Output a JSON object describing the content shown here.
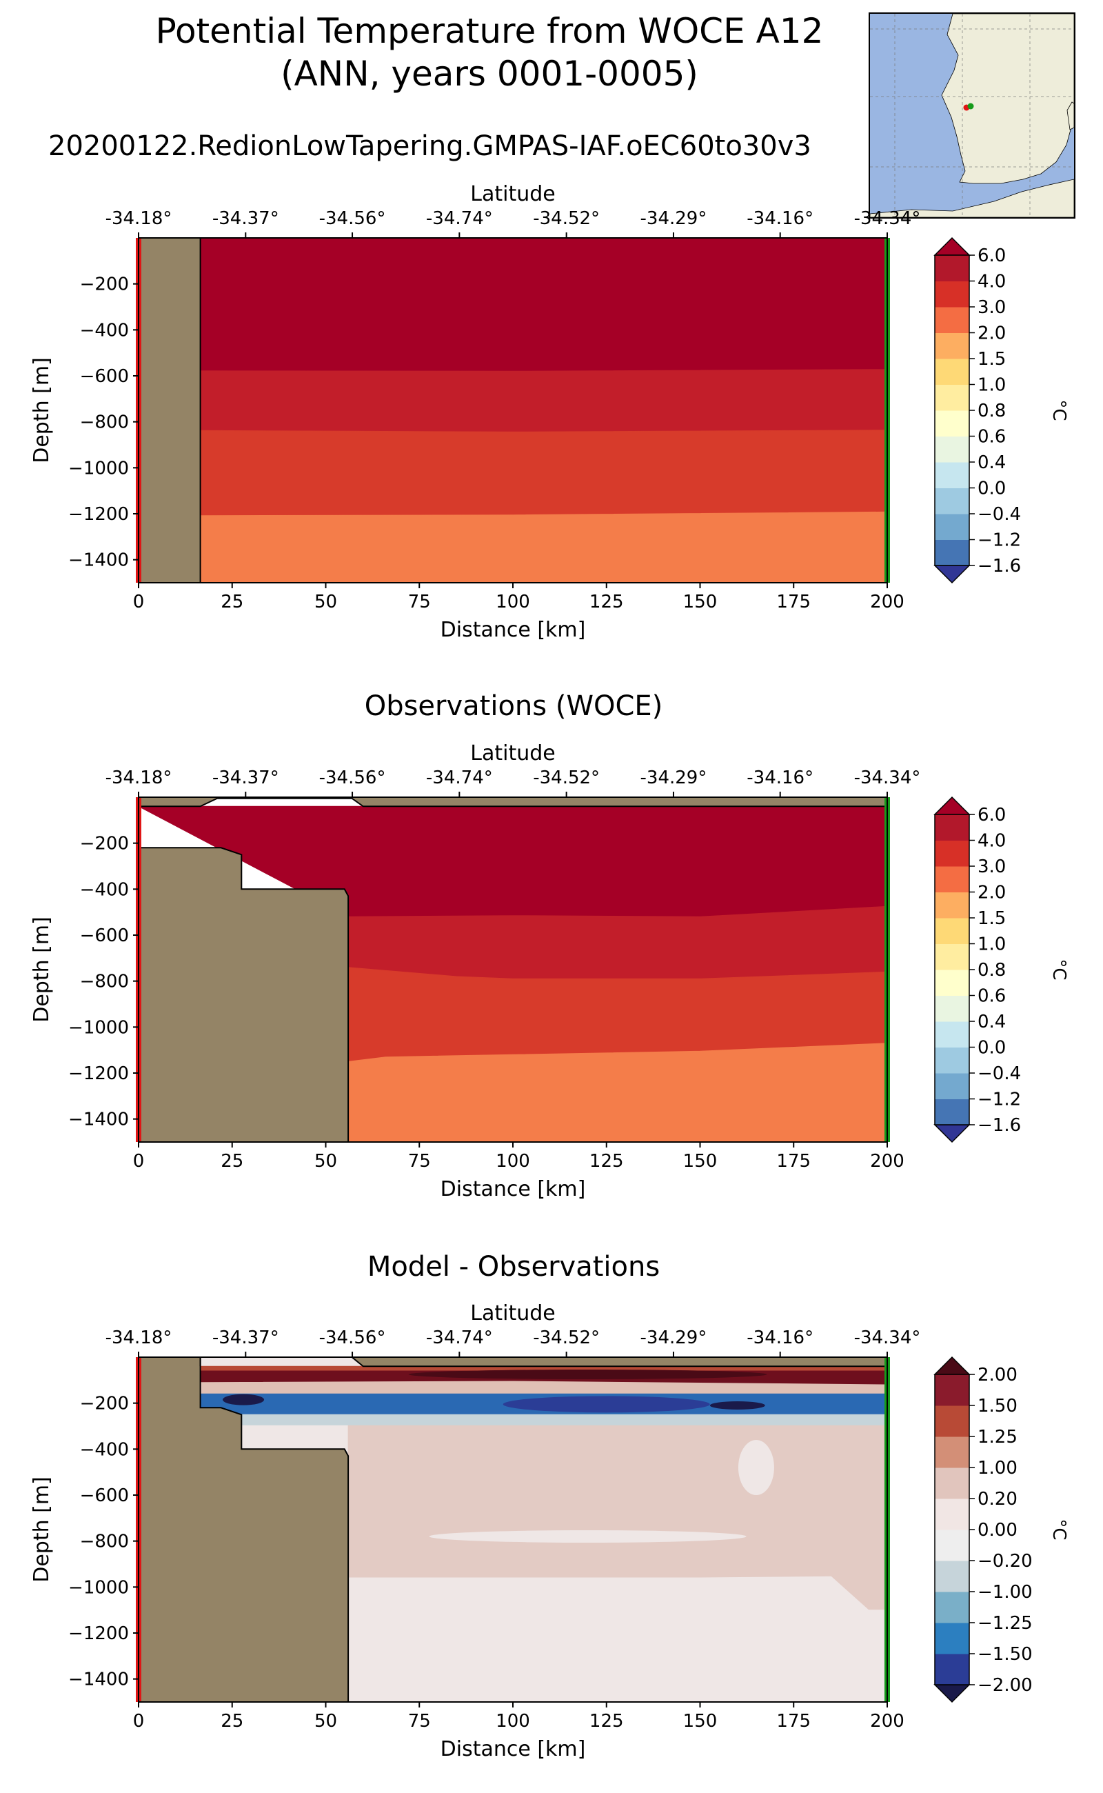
{
  "figure": {
    "title_line1": "Potential Temperature from WOCE A12",
    "title_line2": "(ANN, years 0001-0005)",
    "run_name": "20200122.RedionLowTapering.GMPAS-IAF.oEC60to30v3"
  },
  "colors": {
    "land": "#948466",
    "map_ocean": "#9ab6e2",
    "map_land": "#eeedda",
    "section_start": "#e01616",
    "section_end": "#159b1a"
  },
  "chart_data": [
    {
      "id": "model",
      "type": "heatmap",
      "title": "",
      "xlabel": "Distance [km]",
      "ylabel": "Depth [m]",
      "top_axis_label": "Latitude",
      "xlim": [
        0,
        200
      ],
      "ylim": [
        -1500,
        0
      ],
      "xticks": [
        0,
        25,
        50,
        75,
        100,
        125,
        150,
        175,
        200
      ],
      "yticks": [
        -200,
        -400,
        -600,
        -800,
        -1000,
        -1200,
        -1400
      ],
      "top_ticks": [
        {
          "x": 0,
          "label": "-34.18°"
        },
        {
          "x": 28.6,
          "label": "-34.37°"
        },
        {
          "x": 57.1,
          "label": "-34.56°"
        },
        {
          "x": 85.7,
          "label": "-34.74°"
        },
        {
          "x": 114.3,
          "label": "-34.52°"
        },
        {
          "x": 142.9,
          "label": "-34.29°"
        },
        {
          "x": 171.4,
          "label": "-34.16°"
        },
        {
          "x": 200,
          "label": "-34.34°"
        }
      ],
      "colorbar": {
        "label": "°C",
        "ticks": [
          "−1.6",
          "−1.2",
          "−0.4",
          "0.0",
          "0.4",
          "0.6",
          "0.8",
          "1.0",
          "1.5",
          "2.0",
          "3.0",
          "4.0",
          "6.0"
        ],
        "colors": [
          "#313695",
          "#4575b4",
          "#74a9cf",
          "#9ecae1",
          "#c6e6ef",
          "#e9f5e1",
          "#ffffcc",
          "#ffeda0",
          "#fed976",
          "#fdae61",
          "#f46d43",
          "#d73027",
          "#b2182b",
          "#a50026"
        ]
      },
      "land": [
        [
          0,
          0
        ],
        [
          16.5,
          0
        ],
        [
          16.5,
          -1500
        ],
        [
          0,
          -1500
        ]
      ],
      "bands": [
        {
          "color": "#a50026",
          "top": [
            [
              0,
              0
            ],
            [
              200,
              0
            ]
          ],
          "bottom": [
            [
              16.5,
              -578
            ],
            [
              100,
              -580
            ],
            [
              200,
              -572
            ]
          ]
        },
        {
          "color": "#c21e2a",
          "top": [
            [
              16.5,
              -578
            ],
            [
              100,
              -580
            ],
            [
              200,
              -572
            ]
          ],
          "bottom": [
            [
              16.5,
              -838
            ],
            [
              100,
              -844
            ],
            [
              200,
              -836
            ]
          ]
        },
        {
          "color": "#d73b2b",
          "top": [
            [
              16.5,
              -838
            ],
            [
              100,
              -844
            ],
            [
              200,
              -836
            ]
          ],
          "bottom": [
            [
              16.5,
              -1208
            ],
            [
              100,
              -1205
            ],
            [
              200,
              -1192
            ]
          ]
        },
        {
          "color": "#f47d4a",
          "top": [
            [
              16.5,
              -1208
            ],
            [
              100,
              -1205
            ],
            [
              200,
              -1192
            ]
          ],
          "bottom": [
            [
              16.5,
              -1500
            ],
            [
              200,
              -1500
            ]
          ]
        }
      ]
    },
    {
      "id": "obs",
      "type": "heatmap",
      "title": "Observations (WOCE)",
      "xlabel": "Distance [km]",
      "ylabel": "Depth [m]",
      "top_axis_label": "Latitude",
      "xlim": [
        0,
        200
      ],
      "ylim": [
        -1500,
        0
      ],
      "xticks": [
        0,
        25,
        50,
        75,
        100,
        125,
        150,
        175,
        200
      ],
      "yticks": [
        -200,
        -400,
        -600,
        -800,
        -1000,
        -1200,
        -1400
      ],
      "top_ticks": [
        {
          "x": 0,
          "label": "-34.18°"
        },
        {
          "x": 28.6,
          "label": "-34.37°"
        },
        {
          "x": 57.1,
          "label": "-34.56°"
        },
        {
          "x": 85.7,
          "label": "-34.74°"
        },
        {
          "x": 114.3,
          "label": "-34.52°"
        },
        {
          "x": 142.9,
          "label": "-34.29°"
        },
        {
          "x": 171.4,
          "label": "-34.16°"
        },
        {
          "x": 200,
          "label": "-34.34°"
        }
      ],
      "colorbar": {
        "label": "°C",
        "ticks": [
          "−1.6",
          "−1.2",
          "−0.4",
          "0.0",
          "0.4",
          "0.6",
          "0.8",
          "1.0",
          "1.5",
          "2.0",
          "3.0",
          "4.0",
          "6.0"
        ],
        "colors": [
          "#313695",
          "#4575b4",
          "#74a9cf",
          "#9ecae1",
          "#c6e6ef",
          "#e9f5e1",
          "#ffffcc",
          "#ffeda0",
          "#fed976",
          "#fdae61",
          "#f46d43",
          "#d73027",
          "#b2182b",
          "#a50026"
        ]
      },
      "land": [
        [
          0,
          -40
        ],
        [
          16.5,
          -40
        ],
        [
          21,
          -5
        ],
        [
          57,
          -5
        ],
        [
          60,
          -40
        ],
        [
          200,
          -40
        ],
        [
          200,
          0
        ],
        [
          0,
          0
        ]
      ],
      "land2": [
        [
          0,
          -220
        ],
        [
          22,
          -220
        ],
        [
          27.5,
          -250
        ],
        [
          27.5,
          -400
        ],
        [
          55,
          -400
        ],
        [
          56,
          -430
        ],
        [
          56,
          -1500
        ],
        [
          0,
          -1500
        ]
      ],
      "bands": [
        {
          "color": "#a50026",
          "top": [
            [
              0,
              -40
            ],
            [
              200,
              -40
            ]
          ],
          "bottom": [
            [
              56,
              -520
            ],
            [
              100,
              -515
            ],
            [
              150,
              -520
            ],
            [
              200,
              -475
            ]
          ]
        },
        {
          "color": "#c21e2a",
          "top": [
            [
              56,
              -520
            ],
            [
              100,
              -515
            ],
            [
              150,
              -520
            ],
            [
              200,
              -475
            ]
          ],
          "bottom": [
            [
              56,
              -740
            ],
            [
              85,
              -780
            ],
            [
              100,
              -790
            ],
            [
              150,
              -790
            ],
            [
              200,
              -760
            ]
          ]
        },
        {
          "color": "#d73b2b",
          "top": [
            [
              56,
              -740
            ],
            [
              85,
              -780
            ],
            [
              100,
              -790
            ],
            [
              150,
              -790
            ],
            [
              200,
              -760
            ]
          ],
          "bottom": [
            [
              56,
              -1150
            ],
            [
              66,
              -1130
            ],
            [
              100,
              -1120
            ],
            [
              150,
              -1105
            ],
            [
              200,
              -1070
            ]
          ]
        },
        {
          "color": "#f47d4a",
          "top": [
            [
              56,
              -1150
            ],
            [
              66,
              -1130
            ],
            [
              100,
              -1120
            ],
            [
              150,
              -1105
            ],
            [
              200,
              -1070
            ]
          ],
          "bottom": [
            [
              56,
              -1500
            ],
            [
              200,
              -1500
            ]
          ]
        }
      ]
    },
    {
      "id": "diff",
      "type": "heatmap",
      "title": "Model - Observations",
      "xlabel": "Distance [km]",
      "ylabel": "Depth [m]",
      "top_axis_label": "Latitude",
      "xlim": [
        0,
        200
      ],
      "ylim": [
        -1500,
        0
      ],
      "xticks": [
        0,
        25,
        50,
        75,
        100,
        125,
        150,
        175,
        200
      ],
      "yticks": [
        -200,
        -400,
        -600,
        -800,
        -1000,
        -1200,
        -1400
      ],
      "top_ticks": [
        {
          "x": 0,
          "label": "-34.18°"
        },
        {
          "x": 28.6,
          "label": "-34.37°"
        },
        {
          "x": 57.1,
          "label": "-34.56°"
        },
        {
          "x": 85.7,
          "label": "-34.74°"
        },
        {
          "x": 114.3,
          "label": "-34.52°"
        },
        {
          "x": 142.9,
          "label": "-34.29°"
        },
        {
          "x": 171.4,
          "label": "-34.16°"
        },
        {
          "x": 200,
          "label": "-34.34°"
        }
      ],
      "colorbar": {
        "label": "°C",
        "ticks": [
          "−2.00",
          "−1.50",
          "−1.25",
          "−1.00",
          "−0.20",
          "0.00",
          "0.20",
          "1.00",
          "1.25",
          "1.50",
          "2.00"
        ],
        "colors": [
          "#1a1a4a",
          "#2b3d96",
          "#2c7fc0",
          "#7aafc8",
          "#c6d4da",
          "#eeeeee",
          "#f1e6e4",
          "#e1c5bd",
          "#d38f77",
          "#b84a36",
          "#8a1b2c",
          "#4a0a16"
        ]
      },
      "land": [
        [
          0,
          0
        ],
        [
          16.5,
          0
        ],
        [
          16.5,
          -220
        ],
        [
          22,
          -220
        ],
        [
          27.5,
          -250
        ],
        [
          27.5,
          -400
        ],
        [
          55,
          -400
        ],
        [
          56,
          -430
        ],
        [
          56,
          -1500
        ],
        [
          0,
          -1500
        ]
      ],
      "land2": [
        [
          16.5,
          -40
        ],
        [
          16.5,
          0
        ],
        [
          57,
          0
        ],
        [
          60,
          -40
        ],
        [
          200,
          -40
        ],
        [
          200,
          0
        ],
        [
          57,
          0
        ],
        [
          16.5,
          0
        ]
      ],
      "bands": [
        {
          "color": "#e3cbc4",
          "top": [
            [
              56,
              -290
            ],
            [
              200,
              -290
            ]
          ],
          "bottom": [
            [
              56,
              -960
            ],
            [
              150,
              -960
            ],
            [
              185,
              -955
            ],
            [
              195,
              -1100
            ],
            [
              200,
              -1100
            ]
          ]
        },
        {
          "color": "#efe7e6",
          "top": [
            [
              56,
              -960
            ],
            [
              150,
              -960
            ],
            [
              185,
              -955
            ],
            [
              195,
              -1100
            ],
            [
              200,
              -1100
            ]
          ],
          "bottom": [
            [
              56,
              -1500
            ],
            [
              200,
              -1500
            ]
          ]
        },
        {
          "color": "#b84a36",
          "top": [
            [
              16.5,
              -40
            ],
            [
              200,
              -40
            ]
          ],
          "bottom": [
            [
              16.5,
              -60
            ],
            [
              200,
              -60
            ]
          ]
        },
        {
          "color": "#6e0f1d",
          "top": [
            [
              16.5,
              -60
            ],
            [
              200,
              -60
            ]
          ],
          "bottom": [
            [
              16.5,
              -110
            ],
            [
              100,
              -105
            ],
            [
              200,
              -120
            ]
          ]
        },
        {
          "color": "#e0c0b5",
          "top": [
            [
              16.5,
              -110
            ],
            [
              100,
              -105
            ],
            [
              200,
              -120
            ]
          ],
          "bottom": [
            [
              16.5,
              -160
            ],
            [
              200,
              -160
            ]
          ]
        },
        {
          "color": "#2a69b3",
          "top": [
            [
              16.5,
              -160
            ],
            [
              200,
              -160
            ]
          ],
          "bottom": [
            [
              16.5,
              -250
            ],
            [
              200,
              -250
            ]
          ]
        },
        {
          "color": "#c6d4da",
          "top": [
            [
              16.5,
              -250
            ],
            [
              200,
              -250
            ]
          ],
          "bottom": [
            [
              16.5,
              -295
            ],
            [
              56,
              -295
            ],
            [
              200,
              -295
            ]
          ]
        }
      ]
    }
  ]
}
